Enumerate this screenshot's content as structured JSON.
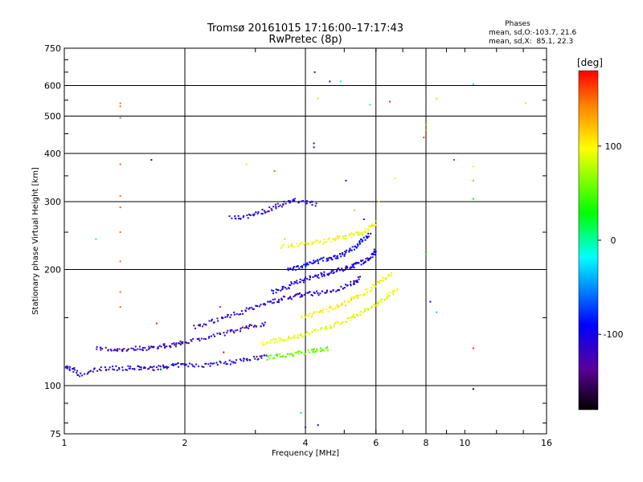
{
  "chart_data": {
    "type": "scatter",
    "title": "Tromsø 20161015 17:16:00–17:17:43",
    "subtitle": "RwPretec (8p)",
    "xlabel": "Frequency [MHz]",
    "ylabel": "Stationary phase Virtual Height [km]",
    "x_scale": "log2",
    "y_scale": "log",
    "xlim": [
      1,
      16
    ],
    "ylim": [
      75,
      750
    ],
    "x_ticks": [
      {
        "label": "1",
        "value": 1
      },
      {
        "label": "2",
        "value": 2
      },
      {
        "label": "4",
        "value": 4
      },
      {
        "label": "6",
        "value": 6
      },
      {
        "label": "8",
        "value": 8
      },
      {
        "label": "10",
        "value": 10
      },
      {
        "label": "16",
        "value": 16
      }
    ],
    "y_ticks": [
      {
        "label": "75",
        "value": 75
      },
      {
        "label": "100",
        "value": 100
      },
      {
        "label": "200",
        "value": 200
      },
      {
        "label": "300",
        "value": 300
      },
      {
        "label": "400",
        "value": 400
      },
      {
        "label": "500",
        "value": 500
      },
      {
        "label": "600",
        "value": 600
      },
      {
        "label": "750",
        "value": 750
      }
    ],
    "grid_x": [
      2,
      4,
      6,
      8
    ],
    "grid_y": [
      100,
      200,
      300,
      400,
      500,
      600
    ],
    "legend": {
      "title": "Phases",
      "line1": "mean, sd,O:-103.7, 21.6",
      "line2": "mean, sd,X:  85.1, 22.3"
    },
    "colorbar": {
      "label": "[deg]",
      "min": -180,
      "max": 180,
      "ticks": [
        {
          "label": "100",
          "value": 100
        },
        {
          "label": "0",
          "value": 0
        },
        {
          "label": "-100",
          "value": -100
        }
      ]
    },
    "traces": [
      {
        "id": "F1-low",
        "phase": -110,
        "points": [
          [
            1,
            112
          ],
          [
            1.05,
            110
          ],
          [
            1.1,
            106
          ],
          [
            1.2,
            110
          ],
          [
            1.3,
            111
          ],
          [
            1.4,
            111
          ],
          [
            1.5,
            111
          ],
          [
            1.6,
            111
          ],
          [
            1.7,
            111
          ],
          [
            1.8,
            112
          ],
          [
            1.9,
            113
          ],
          [
            2.0,
            113
          ],
          [
            2.2,
            113
          ],
          [
            2.4,
            114
          ],
          [
            2.6,
            115
          ],
          [
            2.8,
            117
          ],
          [
            3.0,
            118
          ],
          [
            3.2,
            119
          ]
        ]
      },
      {
        "id": "F1-mid",
        "phase": -120,
        "points": [
          [
            1.2,
            125
          ],
          [
            1.3,
            124
          ],
          [
            1.4,
            124
          ],
          [
            1.5,
            125
          ],
          [
            1.6,
            125
          ],
          [
            1.7,
            126
          ],
          [
            1.8,
            127
          ],
          [
            1.9,
            128
          ],
          [
            2.0,
            130
          ],
          [
            2.2,
            132
          ],
          [
            2.4,
            135
          ],
          [
            2.6,
            138
          ],
          [
            2.8,
            141
          ],
          [
            3.0,
            143
          ],
          [
            3.2,
            145
          ]
        ]
      },
      {
        "id": "F1-upper",
        "phase": -115,
        "points": [
          [
            2.1,
            142
          ],
          [
            2.3,
            146
          ],
          [
            2.5,
            150
          ],
          [
            2.7,
            154
          ],
          [
            2.9,
            158
          ],
          [
            3.1,
            162
          ],
          [
            3.3,
            165
          ],
          [
            3.5,
            168
          ],
          [
            3.7,
            170
          ],
          [
            3.9,
            172
          ],
          [
            4.1,
            173
          ],
          [
            4.4,
            174
          ],
          [
            4.7,
            176
          ],
          [
            5.0,
            180
          ],
          [
            5.3,
            186
          ],
          [
            5.5,
            190
          ]
        ]
      },
      {
        "id": "F2-O",
        "phase": -105,
        "points": [
          [
            3.3,
            175
          ],
          [
            3.5,
            178
          ],
          [
            3.7,
            183
          ],
          [
            3.9,
            187
          ],
          [
            4.1,
            190
          ],
          [
            4.3,
            192
          ],
          [
            4.5,
            195
          ],
          [
            4.7,
            198
          ],
          [
            4.9,
            200
          ],
          [
            5.1,
            203
          ],
          [
            5.3,
            205
          ],
          [
            5.5,
            208
          ],
          [
            5.7,
            212
          ],
          [
            5.9,
            218
          ],
          [
            6.0,
            225
          ]
        ]
      },
      {
        "id": "F2-O-upper",
        "phase": -95,
        "points": [
          [
            3.6,
            200
          ],
          [
            3.8,
            202
          ],
          [
            4.0,
            205
          ],
          [
            4.2,
            208
          ],
          [
            4.4,
            212
          ],
          [
            4.6,
            214
          ],
          [
            4.8,
            216
          ],
          [
            5.0,
            220
          ],
          [
            5.2,
            225
          ],
          [
            5.4,
            232
          ],
          [
            5.6,
            240
          ],
          [
            5.8,
            250
          ]
        ]
      },
      {
        "id": "F2-X",
        "phase": 90,
        "points": [
          [
            3.1,
            128
          ],
          [
            3.3,
            130
          ],
          [
            3.5,
            132
          ],
          [
            3.7,
            133
          ],
          [
            3.9,
            135
          ],
          [
            4.1,
            137
          ],
          [
            4.4,
            140
          ],
          [
            4.7,
            143
          ],
          [
            5.0,
            147
          ],
          [
            5.3,
            151
          ],
          [
            5.6,
            155
          ],
          [
            5.9,
            160
          ],
          [
            6.2,
            166
          ],
          [
            6.5,
            172
          ],
          [
            6.8,
            180
          ]
        ]
      },
      {
        "id": "F2-X-mid",
        "phase": 100,
        "points": [
          [
            3.9,
            150
          ],
          [
            4.2,
            153
          ],
          [
            4.5,
            157
          ],
          [
            4.8,
            160
          ],
          [
            5.1,
            165
          ],
          [
            5.4,
            170
          ],
          [
            5.7,
            176
          ],
          [
            6.0,
            183
          ],
          [
            6.3,
            190
          ],
          [
            6.6,
            195
          ]
        ]
      },
      {
        "id": "F2-X-upper",
        "phase": 95,
        "points": [
          [
            3.5,
            230
          ],
          [
            3.8,
            232
          ],
          [
            4.1,
            234
          ],
          [
            4.4,
            236
          ],
          [
            4.7,
            240
          ],
          [
            5.0,
            243
          ],
          [
            5.3,
            246
          ],
          [
            5.6,
            250
          ],
          [
            5.8,
            258
          ],
          [
            6.0,
            265
          ]
        ]
      },
      {
        "id": "Es-X",
        "phase": 60,
        "points": [
          [
            3.2,
            118
          ],
          [
            3.4,
            119
          ],
          [
            3.6,
            120
          ],
          [
            3.8,
            121
          ],
          [
            4.0,
            122
          ],
          [
            4.2,
            123
          ],
          [
            4.4,
            124
          ],
          [
            4.6,
            125
          ]
        ]
      },
      {
        "id": "F-high",
        "phase": -110,
        "points": [
          [
            2.6,
            272
          ],
          [
            2.8,
            273
          ],
          [
            3.0,
            278
          ],
          [
            3.2,
            285
          ],
          [
            3.4,
            292
          ],
          [
            3.6,
            298
          ],
          [
            3.8,
            302
          ],
          [
            4.0,
            300
          ],
          [
            4.3,
            295
          ]
        ]
      }
    ],
    "scatter_points": [
      {
        "x": 1.38,
        "y": 540,
        "phase": 150
      },
      {
        "x": 1.38,
        "y": 530,
        "phase": 150
      },
      {
        "x": 1.38,
        "y": 495,
        "phase": 150
      },
      {
        "x": 1.38,
        "y": 375,
        "phase": 150
      },
      {
        "x": 1.38,
        "y": 310,
        "phase": 150
      },
      {
        "x": 1.38,
        "y": 290,
        "phase": 150
      },
      {
        "x": 1.38,
        "y": 250,
        "phase": 150
      },
      {
        "x": 1.38,
        "y": 210,
        "phase": 150
      },
      {
        "x": 1.38,
        "y": 175,
        "phase": 150
      },
      {
        "x": 1.38,
        "y": 160,
        "phase": 150
      },
      {
        "x": 1.65,
        "y": 385,
        "phase": -120
      },
      {
        "x": 1.2,
        "y": 240,
        "phase": 0
      },
      {
        "x": 2.85,
        "y": 375,
        "phase": 110
      },
      {
        "x": 3.35,
        "y": 360,
        "phase": 150
      },
      {
        "x": 4.22,
        "y": 650,
        "phase": -120
      },
      {
        "x": 4.6,
        "y": 615,
        "phase": -120
      },
      {
        "x": 4.9,
        "y": 615,
        "phase": -20
      },
      {
        "x": 4.3,
        "y": 555,
        "phase": 110
      },
      {
        "x": 5.8,
        "y": 535,
        "phase": -10
      },
      {
        "x": 6.5,
        "y": 545,
        "phase": 170
      },
      {
        "x": 8.0,
        "y": 475,
        "phase": 140
      },
      {
        "x": 8.0,
        "y": 460,
        "phase": 140
      },
      {
        "x": 7.9,
        "y": 440,
        "phase": 160
      },
      {
        "x": 8.5,
        "y": 555,
        "phase": 110
      },
      {
        "x": 9.4,
        "y": 385,
        "phase": 170
      },
      {
        "x": 10.5,
        "y": 605,
        "phase": -30
      },
      {
        "x": 10.5,
        "y": 370,
        "phase": 90
      },
      {
        "x": 10.5,
        "y": 340,
        "phase": 50
      },
      {
        "x": 10.5,
        "y": 305,
        "phase": 30
      },
      {
        "x": 14.2,
        "y": 540,
        "phase": 110
      },
      {
        "x": 4.2,
        "y": 425,
        "phase": -120
      },
      {
        "x": 4.2,
        "y": 415,
        "phase": -120
      },
      {
        "x": 8.0,
        "y": 220,
        "phase": 30
      },
      {
        "x": 8.2,
        "y": 165,
        "phase": -110
      },
      {
        "x": 8.5,
        "y": 155,
        "phase": -30
      },
      {
        "x": 10.5,
        "y": 125,
        "phase": 170
      },
      {
        "x": 10.5,
        "y": 98,
        "phase": -180
      },
      {
        "x": 3.9,
        "y": 85,
        "phase": -30
      },
      {
        "x": 4.0,
        "y": 78,
        "phase": -130
      },
      {
        "x": 4.3,
        "y": 79,
        "phase": -100
      },
      {
        "x": 1.7,
        "y": 145,
        "phase": 170
      },
      {
        "x": 1.75,
        "y": 110,
        "phase": 40
      },
      {
        "x": 2.45,
        "y": 160,
        "phase": 170
      },
      {
        "x": 2.5,
        "y": 122,
        "phase": 180
      },
      {
        "x": 5.6,
        "y": 270,
        "phase": -110
      },
      {
        "x": 6.7,
        "y": 345,
        "phase": 100
      },
      {
        "x": 6.1,
        "y": 300,
        "phase": 110
      },
      {
        "x": 5.3,
        "y": 285,
        "phase": 120
      },
      {
        "x": 3.55,
        "y": 240,
        "phase": 70
      },
      {
        "x": 5.05,
        "y": 340,
        "phase": -110
      }
    ]
  }
}
